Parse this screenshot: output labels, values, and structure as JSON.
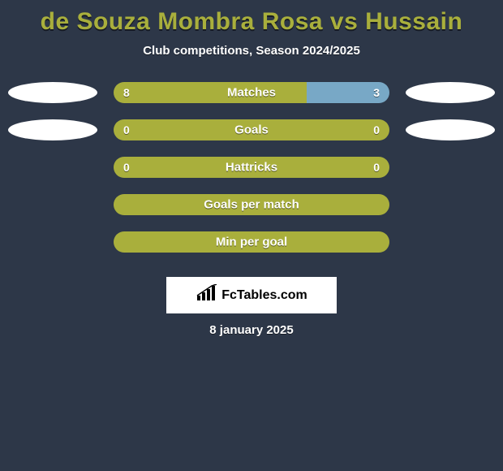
{
  "background_color": "#2d3748",
  "title": "de Souza Mombra Rosa vs Hussain",
  "title_color": "#a9af3c",
  "subtitle": "Club competitions, Season 2024/2025",
  "subtitle_color": "#ffffff",
  "bar_left_color": "#a9af3c",
  "bar_right_color": "#78a8c6",
  "side_oval_color": "#ffffff",
  "rows": [
    {
      "label": "Matches",
      "left_val": "8",
      "right_val": "3",
      "left_pct": 70,
      "right_pct": 30,
      "left_oval": true,
      "right_oval": true
    },
    {
      "label": "Goals",
      "left_val": "0",
      "right_val": "0",
      "left_pct": 100,
      "right_pct": 0,
      "left_oval": true,
      "right_oval": true
    },
    {
      "label": "Hattricks",
      "left_val": "0",
      "right_val": "0",
      "left_pct": 100,
      "right_pct": 0,
      "left_oval": false,
      "right_oval": false
    },
    {
      "label": "Goals per match",
      "left_val": "",
      "right_val": "",
      "left_pct": 100,
      "right_pct": 0,
      "left_oval": false,
      "right_oval": false
    },
    {
      "label": "Min per goal",
      "left_val": "",
      "right_val": "",
      "left_pct": 100,
      "right_pct": 0,
      "left_oval": false,
      "right_oval": false
    }
  ],
  "watermark_box_bg": "#ffffff",
  "watermark_text": "FcTables.com",
  "date_text": "8 january 2025",
  "date_color": "#ffffff"
}
